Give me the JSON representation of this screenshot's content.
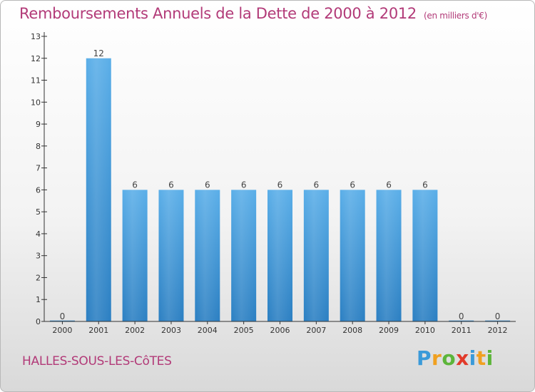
{
  "title": "Remboursements Annuels de la Dette de 2000 à 2012",
  "subtitle": "(en milliers d'€)",
  "commune": "HALLES-SOUS-LES-CôTES",
  "logo": {
    "text": "Proxiti",
    "letters": [
      "P",
      "r",
      "o",
      "x",
      "i",
      "t",
      "i"
    ]
  },
  "colors": {
    "title": "#b23a78",
    "bar_light": "#5aaee8",
    "bar_dark": "#2b7fc2",
    "axis": "#333333"
  },
  "chart_data": {
    "type": "bar",
    "title": "Remboursements Annuels de la Dette de 2000 à 2012",
    "subtitle": "(en milliers d'€)",
    "categories": [
      "2000",
      "2001",
      "2002",
      "2003",
      "2004",
      "2005",
      "2006",
      "2007",
      "2008",
      "2009",
      "2010",
      "2011",
      "2012"
    ],
    "values": [
      0,
      12,
      6,
      6,
      6,
      6,
      6,
      6,
      6,
      6,
      6,
      0,
      0
    ],
    "data_labels": [
      "0",
      "12",
      "6",
      "6",
      "6",
      "6",
      "6",
      "6",
      "6",
      "6",
      "6",
      "0",
      "0"
    ],
    "y_ticks": [
      0,
      1,
      2,
      3,
      4,
      5,
      6,
      7,
      8,
      9,
      10,
      11,
      12,
      13
    ],
    "y_tick_labels": [
      "0",
      "1",
      "2",
      "3",
      "4",
      "5",
      "6",
      "7",
      "8",
      "9",
      "10",
      "11",
      "12",
      "13"
    ],
    "ylim": [
      0,
      13
    ],
    "xlabel": "",
    "ylabel": "",
    "grid": false,
    "legend": "none"
  }
}
